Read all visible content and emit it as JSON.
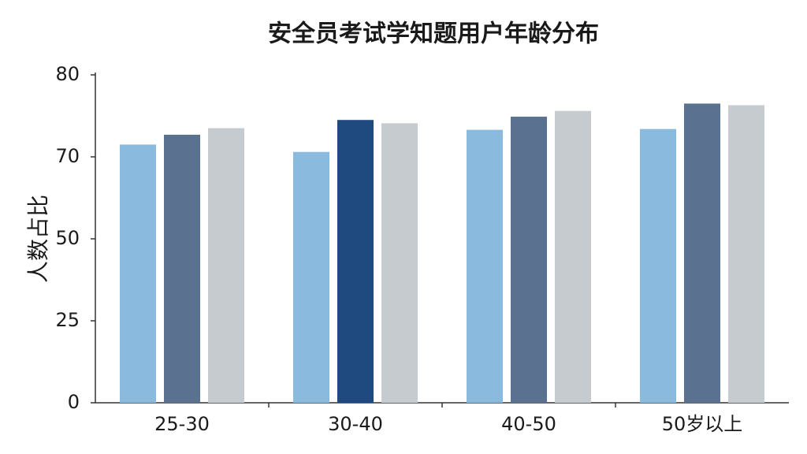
{
  "chart_data": {
    "type": "bar",
    "title": "安全员考试学知题用户年龄分布",
    "y_label": "人数占比",
    "categories": [
      "25-30",
      "30-40",
      "40-50",
      "50岁以上"
    ],
    "series": [
      {
        "color": "#8bbadf",
        "values": [
          71.5,
          70.6,
          73.3,
          73.4
        ]
      },
      {
        "color": "#5a7290",
        "colors": [
          "#5a7290",
          "#1f4a7f",
          "#5a7290",
          "#5a7290"
        ],
        "values": [
          72.7,
          74.5,
          74.9,
          76.5
        ]
      },
      {
        "color": "#c6cbd0",
        "values": [
          73.5,
          74.1,
          75.6,
          76.3
        ]
      }
    ],
    "ylim": [
      0,
      80
    ],
    "yticks": [
      0,
      25,
      50,
      70,
      80
    ],
    "grid": false
  }
}
